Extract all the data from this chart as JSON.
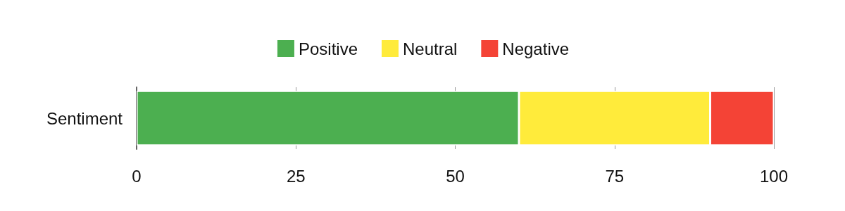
{
  "chart_data": {
    "type": "bar",
    "orientation": "horizontal",
    "stacked": true,
    "categories": [
      "Sentiment"
    ],
    "series": [
      {
        "name": "Positive",
        "color": "#4caf50",
        "values": [
          60
        ]
      },
      {
        "name": "Neutral",
        "color": "#ffeb3b",
        "values": [
          30
        ]
      },
      {
        "name": "Negative",
        "color": "#f44336",
        "values": [
          10
        ]
      }
    ],
    "xlim": [
      0,
      100
    ],
    "xticks": [
      0,
      25,
      50,
      75,
      100
    ],
    "grid": "x",
    "legend": "top"
  }
}
